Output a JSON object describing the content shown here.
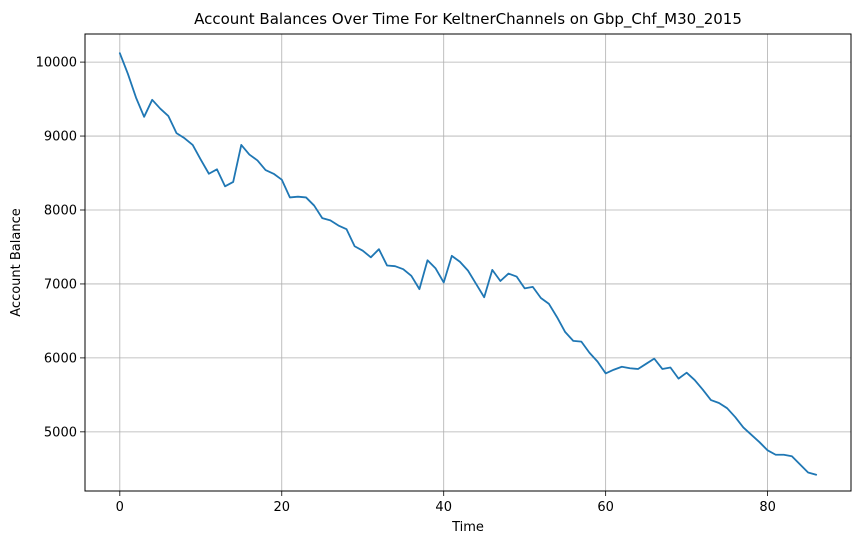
{
  "chart_data": {
    "type": "line",
    "title": "Account Balances Over Time For KeltnerChannels on Gbp_Chf_M30_2015",
    "xlabel": "Time",
    "ylabel": "Account Balance",
    "xlim": [
      -4.3,
      90.3
    ],
    "ylim": [
      4200,
      10380
    ],
    "xticks": [
      0,
      20,
      40,
      60,
      80
    ],
    "yticks": [
      5000,
      6000,
      7000,
      8000,
      9000,
      10000
    ],
    "grid": true,
    "color": "#1f77b4",
    "series": [
      {
        "x": [
          0,
          1,
          2,
          3,
          4,
          5,
          6,
          7,
          8,
          9,
          10,
          11,
          12,
          13,
          14,
          15,
          16,
          17,
          18,
          19,
          20,
          21,
          22,
          23,
          24,
          25,
          26,
          27,
          28,
          29,
          30,
          31,
          32,
          33,
          34,
          35,
          36,
          37,
          38,
          39,
          40,
          41,
          42,
          43,
          44,
          45,
          46,
          47,
          48,
          49,
          50,
          51,
          52,
          53,
          54,
          55,
          56,
          57,
          58,
          59,
          60,
          61,
          62,
          63,
          64,
          65,
          66,
          67,
          68,
          69,
          70,
          71,
          72,
          73,
          74,
          75,
          76,
          77,
          78,
          79,
          80,
          81,
          82,
          83,
          84,
          85,
          86
        ],
        "values": [
          10120,
          9840,
          9520,
          9260,
          9490,
          9370,
          9270,
          9040,
          8970,
          8880,
          8680,
          8490,
          8550,
          8320,
          8380,
          8880,
          8750,
          8670,
          8540,
          8490,
          8410,
          8170,
          8180,
          8170,
          8060,
          7890,
          7860,
          7790,
          7740,
          7510,
          7450,
          7360,
          7470,
          7250,
          7240,
          7200,
          7110,
          6930,
          7320,
          7210,
          7020,
          7380,
          7300,
          7180,
          7000,
          6820,
          7190,
          7040,
          7140,
          7100,
          6940,
          6960,
          6810,
          6730,
          6550,
          6350,
          6230,
          6220,
          6070,
          5950,
          5790,
          5840,
          5880,
          5860,
          5850,
          5920,
          5990,
          5850,
          5870,
          5720,
          5800,
          5700,
          5570,
          5430,
          5390,
          5320,
          5200,
          5060,
          4960,
          4860,
          4750,
          4690,
          4690,
          4670,
          4560,
          4450,
          4420
        ]
      }
    ]
  }
}
